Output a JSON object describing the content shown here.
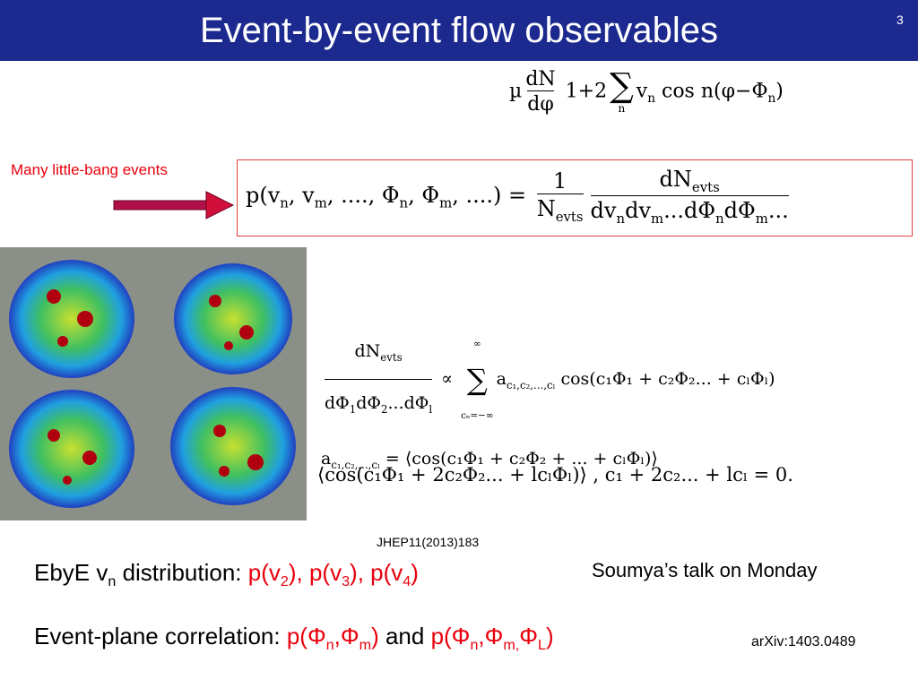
{
  "header": {
    "title": "Event-by-event flow observables",
    "page_number": "3"
  },
  "eq_top": [
    "µ",
    {
      "num": [
        "dN"
      ],
      "den": [
        "dφ"
      ]
    },
    " 1+2",
    {
      "op": "∑",
      "under": "n"
    },
    {
      "base": "v",
      "sub": "n"
    },
    " cos n(φ−",
    {
      "base": "Φ",
      "sub": "n"
    },
    ")"
  ],
  "label_left": "Many little-bang events",
  "eq_main": [
    "p(",
    {
      "base": "v",
      "sub": "n"
    },
    ", ",
    {
      "base": "v",
      "sub": "m"
    },
    ", ...., ",
    {
      "base": "Φ",
      "sub": "n"
    },
    ", ",
    {
      "base": "Φ",
      "sub": "m"
    },
    ", ....) = ",
    {
      "num": [
        "1"
      ],
      "den": [
        {
          "base": "N",
          "sub": "evts"
        }
      ]
    },
    {
      "num": [
        {
          "base": "dN",
          "sub": "evts"
        }
      ],
      "den": [
        "d",
        {
          "base": "v",
          "sub": "n"
        },
        "d",
        {
          "base": "v",
          "sub": "m"
        },
        "...d",
        {
          "base": "Φ",
          "sub": "n"
        },
        "d",
        {
          "base": "Φ",
          "sub": "m"
        },
        "..."
      ]
    }
  ],
  "eq_expansion": [
    [
      {
        "num": [
          {
            "base": "dN",
            "sub": "evts"
          }
        ],
        "den": [
          "d",
          {
            "base": "Φ",
            "sub": "1"
          },
          "d",
          {
            "base": "Φ",
            "sub": "2"
          },
          "...d",
          {
            "base": "Φ",
            "sub": "l"
          }
        ]
      },
      " ∝ ",
      {
        "op": "∑",
        "over": "∞",
        "under": "cₙ=−∞"
      },
      {
        "base": "a",
        "sub": "c₁,c₂,...,cₗ"
      },
      " cos(c₁Φ₁ + c₂Φ₂... + cₗΦₗ)"
    ],
    [
      {
        "base": "a",
        "sub": "c₁,c₂,...,cₗ"
      },
      " = ⟨cos(c₁Φ₁ + c₂Φ₂ + ... + cₗΦₗ)⟩"
    ]
  ],
  "eq_constraint": [
    "⟨cos(c₁Φ₁ + 2c₂Φ₂... + lcₗΦₗ)⟩ , c₁ + 2c₂... + lcₗ = 0."
  ],
  "reference": "JHEP11(2013)183",
  "bullets": [
    [
      {
        "math": [
          "EbyE ",
          {
            "base": "v",
            "sub": "n"
          },
          " distribution: "
        ]
      },
      {
        "math": [
          "p(",
          {
            "base": "v",
            "sub": "2"
          },
          "), p(",
          {
            "base": "v",
            "sub": "3"
          },
          "), p(",
          {
            "base": "v",
            "sub": "4"
          },
          ")"
        ],
        "color": "#e8000b"
      }
    ],
    [
      {
        "math": [
          "Event-plane correlation: "
        ]
      },
      {
        "math": [
          "p(Φ",
          {
            "base": "",
            "sub": "n"
          },
          ",Φ",
          {
            "base": "",
            "sub": "m"
          },
          ")"
        ],
        "color": "#e8000b"
      },
      {
        "math": [
          " and "
        ]
      },
      {
        "math": [
          "p(Φ",
          {
            "base": "",
            "sub": "n"
          },
          ",Φ",
          {
            "base": "",
            "sub": "m,"
          },
          "Φ",
          {
            "base": "",
            "sub": "L"
          },
          ")"
        ],
        "color": "#e8000b"
      }
    ]
  ],
  "notes": [
    "Soumya’s talk on Monday",
    "arXiv:1403.0489"
  ]
}
